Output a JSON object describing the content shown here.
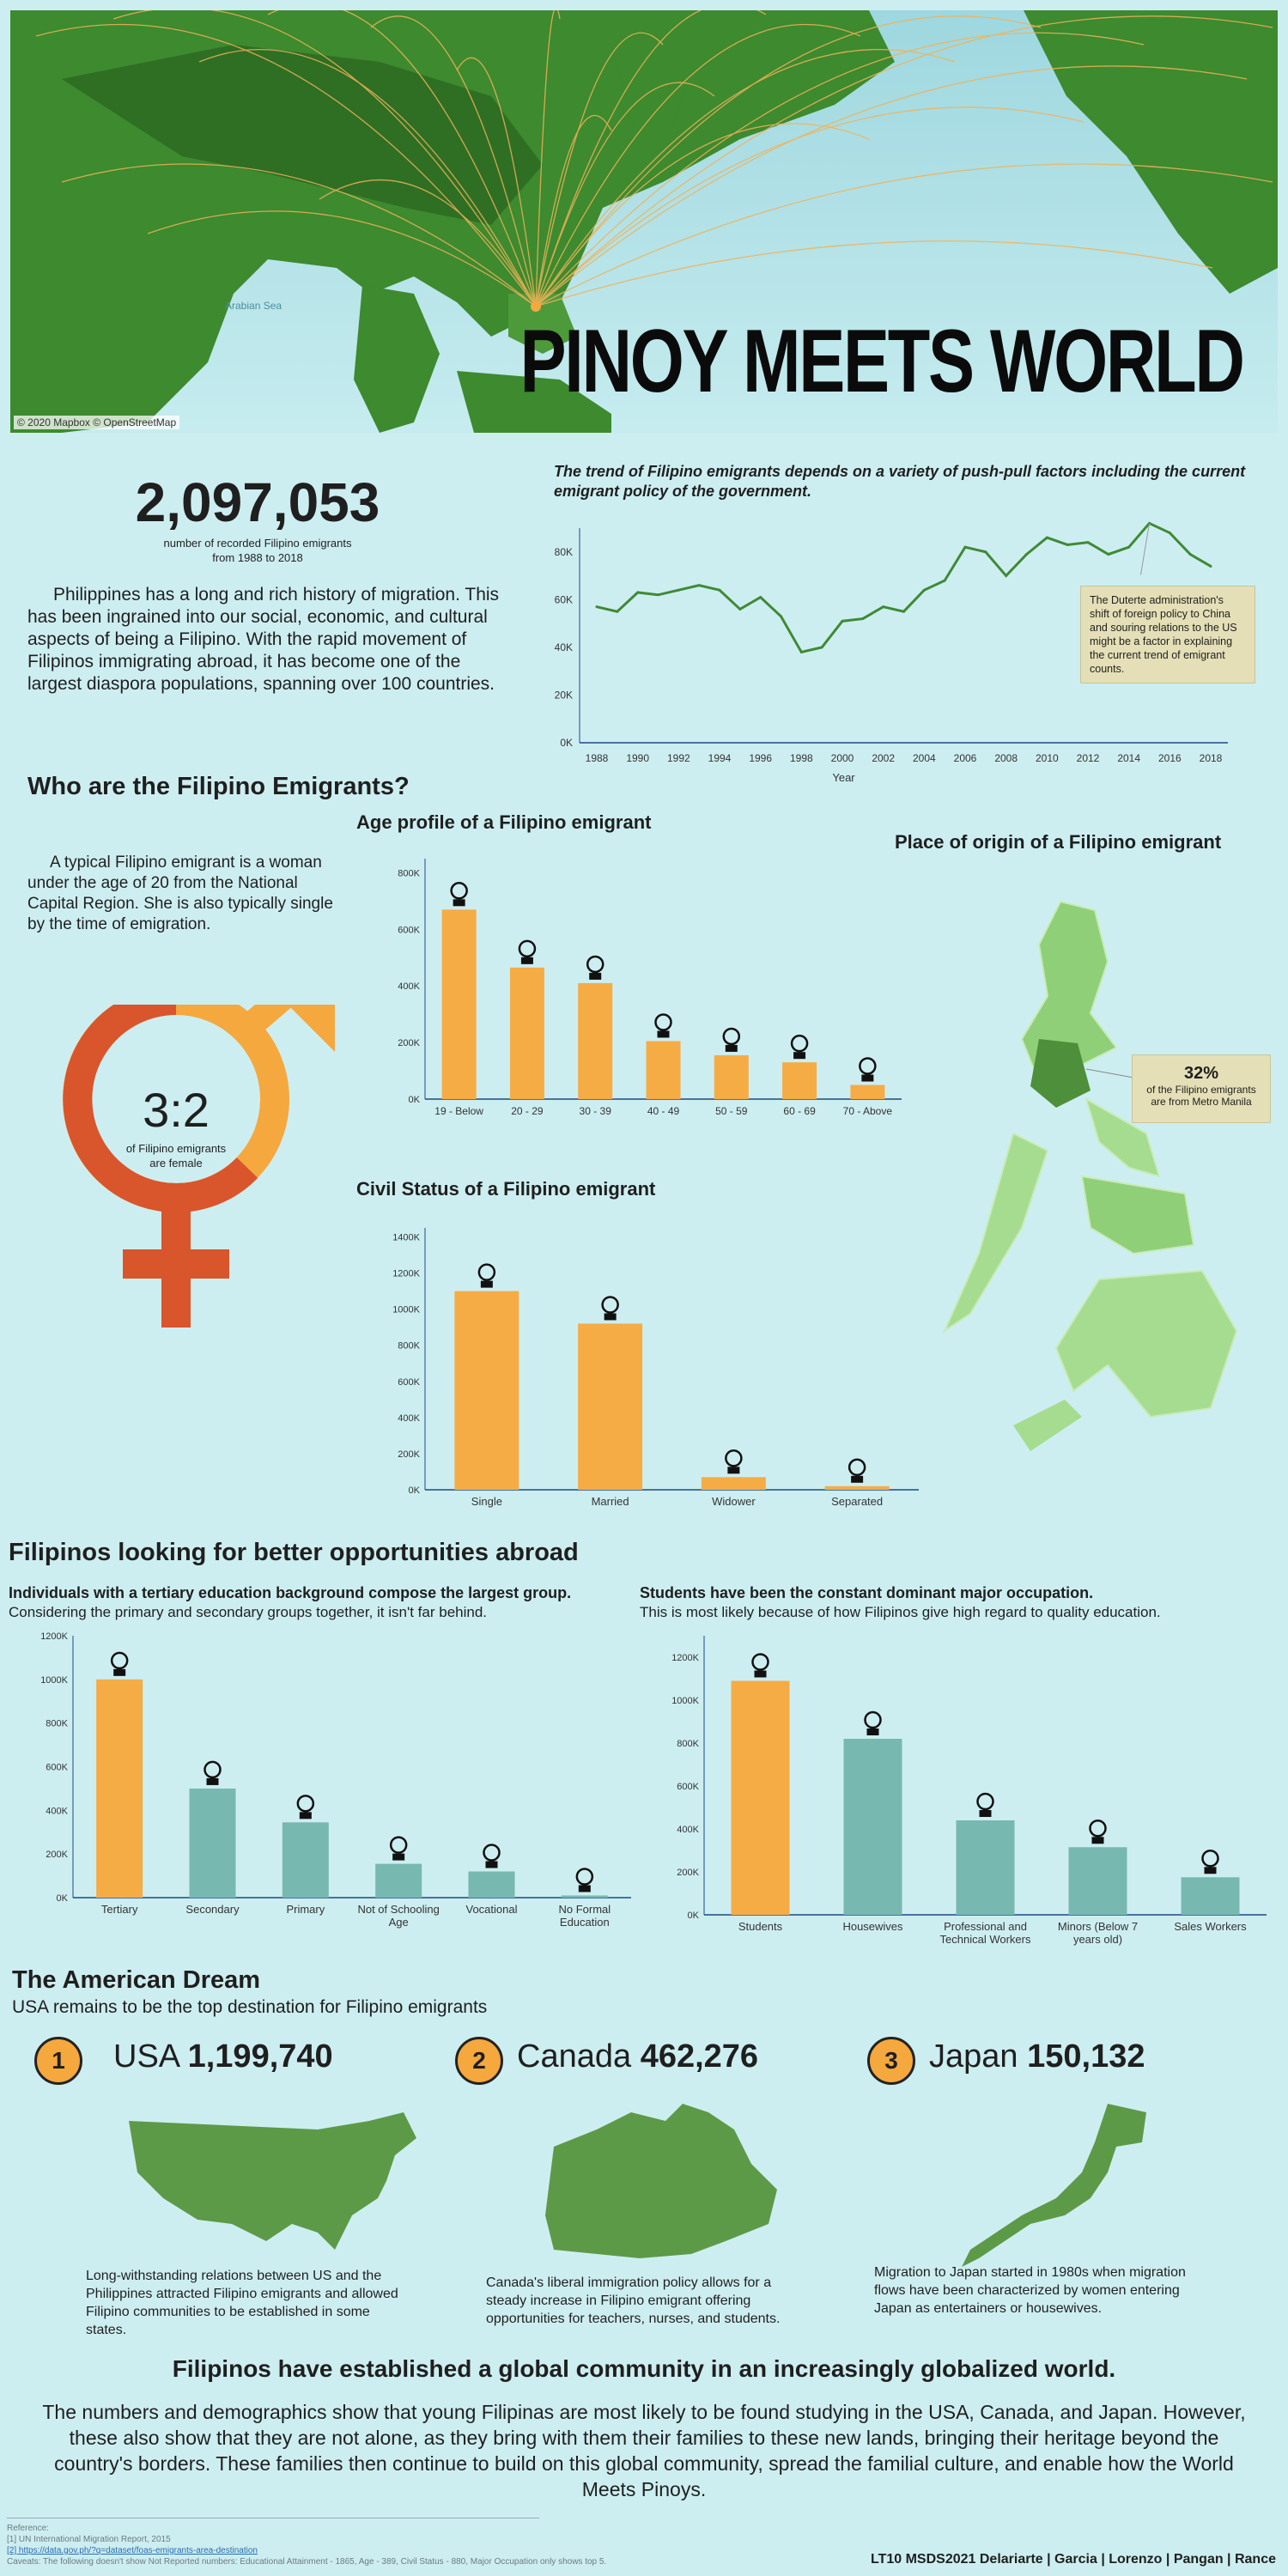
{
  "hero": {
    "title": "PINOY MEETS WORLD",
    "credit": "© 2020 Mapbox © OpenStreetMap",
    "sea_label": "Arabian Sea"
  },
  "stats": {
    "total": "2,097,053",
    "total_caption": "number of recorded Filipino emigrants",
    "total_range": "from 1988 to 2018"
  },
  "intro": "Philippines has a long and rich history of migration. This has been ingrained into our social, economic, and cultural aspects of being a Filipino. With the rapid movement of Filipinos immigrating abroad, it has become one of the largest diaspora populations, spanning over 100 countries.",
  "trend": {
    "title": "The trend of Filipino emigrants depends on a variety of push-pull factors including the current emigrant policy of the government.",
    "note": "The Duterte administration's shift of foreign policy to China and souring relations to the US might be a factor in explaining the current trend of emigrant counts."
  },
  "who": {
    "heading": "Who are the Filipino Emigrants?",
    "description": "A typical Filipino emigrant is a woman under the age of 20 from the National Capital Region. She is also typically single by the time of emigration.",
    "ratio": "3:2",
    "ratio_caption_1": "of Filipino emigrants",
    "ratio_caption_2": "are female",
    "origin_title": "Place of origin of a Filipino emigrant",
    "origin_pct": "32%",
    "origin_caption_1": "of the Filipino emigrants",
    "origin_caption_2": "are from Metro Manila"
  },
  "opportunities": {
    "heading": "Filipinos looking for better opportunities abroad",
    "edu_title": "Individuals with a tertiary education background compose the largest group.",
    "edu_sub": "Considering the primary and secondary groups together, it isn't far behind.",
    "occ_title": "Students have been the constant dominant major occupation.",
    "occ_sub": "This is most likely because of how Filipinos give high regard to quality education."
  },
  "american": {
    "heading": "The American Dream",
    "sub": "USA remains to be the top destination for Filipino emigrants",
    "countries": [
      {
        "rank": "1",
        "name": "USA",
        "count": "1,199,740",
        "desc": "Long-withstanding relations between US and the Philippines attracted Filipino emigrants and allowed Filipino communities to be established in some states."
      },
      {
        "rank": "2",
        "name": "Canada",
        "count": "462,276",
        "desc": "Canada's liberal immigration policy allows for a steady increase in Filipino emigrant offering opportunities for teachers, nurses, and students."
      },
      {
        "rank": "3",
        "name": "Japan",
        "count": "150,132",
        "desc": "Migration to Japan started in 1980s when migration flows have been characterized by women entering Japan as entertainers or housewives."
      }
    ]
  },
  "closing": {
    "heading": "Filipinos have established a global community in an increasingly globalized world.",
    "text": "The numbers and demographics show that young Filipinas are most likely to be found studying in the USA, Canada, and Japan. However, these also show that they are not alone, as they bring with them their families to these new lands, bringing their heritage beyond the country's borders. These families then continue to build on this global community, spread the familial culture, and enable how the World Meets Pinoys."
  },
  "footer": {
    "ref_label": "Reference:",
    "ref1": "[1] UN International Migration Report, 2015",
    "ref2": "[2] https://data.gov.ph/?q=dataset/foas-emigrants-area-destination",
    "caveat": "Caveats: The following doesn't show Not Reported numbers: Educational Attainment - 1865, Age - 389, Civil Status - 880, Major Occupation only shows top 5.",
    "authors": "LT10 MSDS2021 Delariarte | Garcia | Lorenzo | Pangan | Rance"
  },
  "colors": {
    "bar": "#f5ac45",
    "teal": "#77b8b1",
    "line": "#3f8a35",
    "axis": "#1a4a86",
    "female": "#d9552c",
    "male": "#f5a83e",
    "map_green": "#5d9a48"
  },
  "chart_data": [
    {
      "type": "line",
      "x": [
        1988,
        1989,
        1990,
        1991,
        1992,
        1993,
        1994,
        1995,
        1996,
        1997,
        1998,
        1999,
        2000,
        2001,
        2002,
        2003,
        2004,
        2005,
        2006,
        2007,
        2008,
        2009,
        2010,
        2011,
        2012,
        2013,
        2014,
        2015,
        2016,
        2017,
        2018
      ],
      "values": [
        57000,
        55000,
        63000,
        62000,
        64000,
        66000,
        64000,
        56000,
        61000,
        53000,
        38000,
        40000,
        51000,
        52000,
        57000,
        55000,
        64000,
        68000,
        82000,
        80000,
        70000,
        79000,
        86000,
        83000,
        84000,
        79000,
        82000,
        92000,
        88000,
        79000,
        74000
      ],
      "title": "The trend of Filipino emigrants depends on a variety of push-pull factors including the current emigrant policy of the government.",
      "xlabel": "Year",
      "ylim": [
        0,
        90000
      ],
      "yticks": [
        "0K",
        "20K",
        "40K",
        "60K",
        "80K"
      ],
      "xticks": [
        1988,
        1990,
        1992,
        1994,
        1996,
        1998,
        2000,
        2002,
        2004,
        2006,
        2008,
        2010,
        2012,
        2014,
        2016,
        2018
      ]
    },
    {
      "type": "bar",
      "title": "Age profile of a Filipino emigrant",
      "categories": [
        "19 - Below",
        "20 - 29",
        "30 - 39",
        "40 - 49",
        "50 - 59",
        "60 - 69",
        "70 - Above"
      ],
      "values": [
        670000,
        465000,
        410000,
        205000,
        155000,
        130000,
        50000
      ],
      "ylim": [
        0,
        850000
      ],
      "yticks": [
        "0K",
        "200K",
        "400K",
        "600K",
        "800K"
      ]
    },
    {
      "type": "bar",
      "title": "Civil Status of a Filipino emigrant",
      "categories": [
        "Single",
        "Married",
        "Widower",
        "Separated"
      ],
      "values": [
        1100000,
        920000,
        70000,
        20000
      ],
      "ylim": [
        0,
        1450000
      ],
      "yticks": [
        "0K",
        "200K",
        "400K",
        "600K",
        "800K",
        "1000K",
        "1200K",
        "1400K"
      ]
    },
    {
      "type": "bar",
      "title": "Individuals with a tertiary education background compose the largest group.",
      "categories": [
        "Tertiary",
        "Secondary",
        "Primary",
        "Not of Schooling Age",
        "Vocational",
        "No Formal Education"
      ],
      "values": [
        1000000,
        500000,
        345000,
        155000,
        120000,
        10000
      ],
      "ylim": [
        0,
        1200000
      ],
      "yticks": [
        "0K",
        "200K",
        "400K",
        "600K",
        "800K",
        "1000K",
        "1200K"
      ]
    },
    {
      "type": "bar",
      "title": "Students have been the constant dominant major occupation.",
      "categories": [
        "Students",
        "Housewives",
        "Professional and Technical Workers",
        "Minors (Below 7 years old)",
        "Sales Workers"
      ],
      "values": [
        1090000,
        820000,
        440000,
        315000,
        175000
      ],
      "ylim": [
        0,
        1300000
      ],
      "yticks": [
        "0K",
        "200K",
        "400K",
        "600K",
        "800K",
        "1000K",
        "1200K"
      ]
    }
  ]
}
